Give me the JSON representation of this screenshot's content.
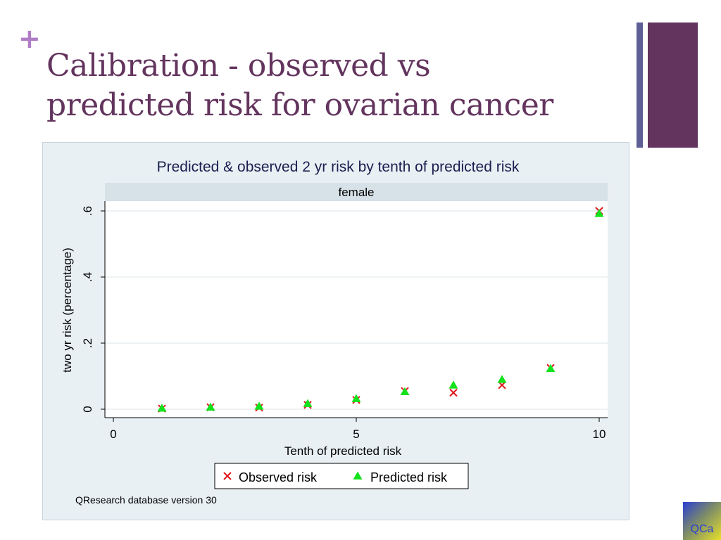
{
  "slide": {
    "plus_symbol": "+",
    "title_line1": "Calibration  - observed vs",
    "title_line2": "predicted risk for ovarian cancer",
    "logo_text": "QCa",
    "colors": {
      "title": "#63345e",
      "plus": "#b07cc6",
      "bar_thin": "#5d5f95",
      "bar_thick": "#63345e"
    }
  },
  "chart_data": {
    "type": "scatter",
    "title": "Predicted & observed 2 yr risk by tenth of predicted risk",
    "panel_label": "female",
    "xlabel": "Tenth of predicted risk",
    "ylabel": "two yr risk (percentage)",
    "xlim": [
      0,
      10
    ],
    "ylim": [
      0,
      0.6
    ],
    "x_ticks": [
      0,
      5,
      10
    ],
    "x_tick_labels": [
      "0",
      "5",
      "10"
    ],
    "y_ticks": [
      0,
      0.2,
      0.4,
      0.6
    ],
    "y_tick_labels": [
      "0",
      ".2",
      ".4",
      ".6"
    ],
    "grid": true,
    "legend_position": "bottom-center",
    "note": "QResearch database version 30",
    "series": [
      {
        "name": "Observed risk",
        "marker": "x",
        "color": "#e0191f",
        "x": [
          1,
          2,
          3,
          4,
          5,
          6,
          7,
          8,
          9,
          10
        ],
        "y": [
          0.002,
          0.006,
          0.005,
          0.013,
          0.028,
          0.055,
          0.05,
          0.073,
          0.125,
          0.6
        ]
      },
      {
        "name": "Predicted risk",
        "marker": "triangle",
        "color": "#13e21c",
        "x": [
          1,
          2,
          3,
          4,
          5,
          6,
          7,
          8,
          9,
          10
        ],
        "y": [
          0.003,
          0.006,
          0.009,
          0.017,
          0.032,
          0.053,
          0.073,
          0.09,
          0.123,
          0.592
        ]
      }
    ]
  }
}
